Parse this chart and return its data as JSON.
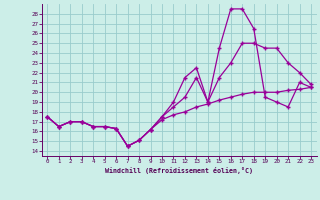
{
  "xlabel": "Windchill (Refroidissement éolien,°C)",
  "bg_color": "#cceee8",
  "line_color": "#990099",
  "grid_color": "#99cccc",
  "xlim": [
    -0.5,
    23.5
  ],
  "ylim": [
    13.5,
    29.0
  ],
  "xticks": [
    0,
    1,
    2,
    3,
    4,
    5,
    6,
    7,
    8,
    9,
    10,
    11,
    12,
    13,
    14,
    15,
    16,
    17,
    18,
    19,
    20,
    21,
    22,
    23
  ],
  "yticks": [
    14,
    15,
    16,
    17,
    18,
    19,
    20,
    21,
    22,
    23,
    24,
    25,
    26,
    27,
    28
  ],
  "curve1_x": [
    0,
    1,
    2,
    3,
    4,
    5,
    6,
    7,
    8,
    9,
    10,
    11,
    12,
    13,
    14,
    15,
    16,
    17,
    18,
    19,
    20,
    21,
    22,
    23
  ],
  "curve1_y": [
    17.5,
    16.5,
    17.0,
    17.0,
    16.5,
    16.5,
    16.3,
    14.5,
    15.1,
    16.2,
    17.2,
    17.7,
    18.0,
    18.5,
    18.8,
    19.2,
    19.5,
    19.8,
    20.0,
    20.0,
    20.0,
    20.2,
    20.3,
    20.5
  ],
  "curve2_x": [
    0,
    1,
    2,
    3,
    4,
    5,
    6,
    7,
    8,
    9,
    10,
    11,
    12,
    13,
    14,
    15,
    16,
    17,
    18,
    19,
    20,
    21,
    22,
    23
  ],
  "curve2_y": [
    17.5,
    16.5,
    17.0,
    17.0,
    16.5,
    16.5,
    16.3,
    14.5,
    15.1,
    16.2,
    17.5,
    18.5,
    19.5,
    21.5,
    19.0,
    21.5,
    23.0,
    25.0,
    25.0,
    24.5,
    24.5,
    23.0,
    22.0,
    20.8
  ],
  "curve3_x": [
    0,
    1,
    2,
    3,
    4,
    5,
    6,
    7,
    8,
    9,
    10,
    11,
    12,
    13,
    14,
    15,
    16,
    17,
    18,
    19,
    20,
    21,
    22,
    23
  ],
  "curve3_y": [
    17.5,
    16.5,
    17.0,
    17.0,
    16.5,
    16.5,
    16.3,
    14.5,
    15.1,
    16.2,
    17.5,
    19.0,
    21.5,
    22.5,
    19.0,
    24.5,
    28.5,
    28.5,
    26.5,
    19.5,
    19.0,
    18.5,
    21.0,
    20.5
  ]
}
